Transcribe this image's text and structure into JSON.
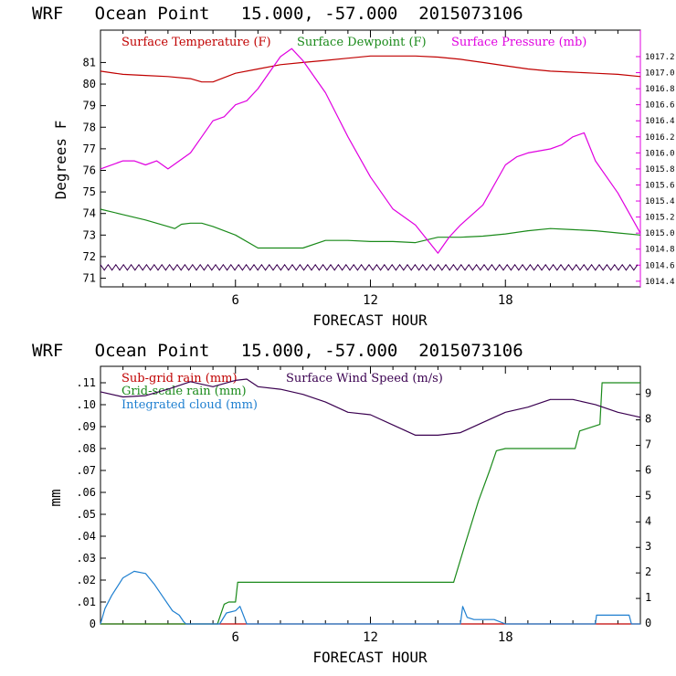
{
  "charts": [
    {
      "title": "WRF   Ocean Point   15.000, -57.000  2015073106",
      "xlabel": "FORECAST HOUR",
      "ylabel": "Degrees F",
      "x_ticks": [
        "6",
        "12",
        "18"
      ],
      "y_ticks": [
        "71",
        "72",
        "73",
        "74",
        "75",
        "76",
        "77",
        "78",
        "79",
        "80",
        "81"
      ],
      "right_ticks": [
        "1014.4",
        "1014.6",
        "1014.8",
        "1015.0",
        "1015.2",
        "1015.4",
        "1015.6",
        "1015.8",
        "1016.0",
        "1016.2",
        "1016.4",
        "1016.6",
        "1016.8",
        "1017.0",
        "1017.2"
      ],
      "legend": [
        {
          "label": "Surface Temperature (F)",
          "color": "#c00000"
        },
        {
          "label": "Surface Dewpoint (F)",
          "color": "#1a8a1a"
        },
        {
          "label": "Surface Pressure (mb)",
          "color": "#e000e0"
        }
      ]
    },
    {
      "title": "WRF   Ocean Point   15.000, -57.000  2015073106",
      "xlabel": "FORECAST HOUR",
      "ylabel": "mm",
      "x_ticks": [
        "6",
        "12",
        "18"
      ],
      "y_ticks": [
        "0",
        ".01",
        ".02",
        ".03",
        ".04",
        ".05",
        ".06",
        ".07",
        ".08",
        ".09",
        ".10",
        ".11"
      ],
      "right_ticks": [
        "0",
        "1",
        "2",
        "3",
        "4",
        "5",
        "6",
        "7",
        "8",
        "9"
      ],
      "legend": [
        {
          "label": "Sub-grid rain (mm)",
          "color": "#c00000"
        },
        {
          "label": "Grid-scale rain (mm)",
          "color": "#1a8a1a"
        },
        {
          "label": "Integrated cloud (mm)",
          "color": "#1e7fd0"
        },
        {
          "label": "Surface Wind Speed (m/s)",
          "color": "#3a0050"
        }
      ]
    }
  ],
  "chart_data": [
    {
      "type": "line",
      "title": "WRF   Ocean Point   15.000, -57.000  2015073106",
      "xlabel": "FORECAST HOUR",
      "ylabel": "Degrees F",
      "xlim": [
        0,
        24
      ],
      "ylim": [
        70.6,
        82.5
      ],
      "y2lim": [
        1014.33,
        1017.53
      ],
      "series": [
        {
          "name": "Surface Temperature (F)",
          "axis": "left",
          "color": "#c00000",
          "x": [
            0,
            1,
            2,
            3,
            4,
            4.5,
            5,
            6,
            7,
            8,
            9,
            10,
            11,
            12,
            13,
            14,
            15,
            16,
            17,
            18,
            19,
            20,
            21,
            22,
            23,
            24
          ],
          "y": [
            80.6,
            80.45,
            80.4,
            80.35,
            80.25,
            80.1,
            80.1,
            80.5,
            80.7,
            80.9,
            81.0,
            81.1,
            81.2,
            81.3,
            81.3,
            81.3,
            81.25,
            81.15,
            81.0,
            80.85,
            80.7,
            80.6,
            80.55,
            80.5,
            80.45,
            80.35
          ]
        },
        {
          "name": "Surface Dewpoint (F)",
          "axis": "left",
          "color": "#1a8a1a",
          "x": [
            0,
            1,
            2,
            3,
            3.3,
            3.6,
            4,
            4.5,
            5,
            6,
            7,
            8,
            9,
            10,
            11,
            12,
            13,
            14,
            15,
            16,
            17,
            18,
            19,
            20,
            21,
            22,
            23,
            24
          ],
          "y": [
            74.2,
            73.95,
            73.7,
            73.4,
            73.3,
            73.5,
            73.55,
            73.55,
            73.4,
            73.0,
            72.4,
            72.4,
            72.4,
            72.75,
            72.75,
            72.7,
            72.7,
            72.65,
            72.9,
            72.9,
            72.95,
            73.05,
            73.2,
            73.3,
            73.25,
            73.2,
            73.1,
            73.0
          ]
        },
        {
          "name": "Surface Pressure (mb)",
          "axis": "right",
          "color": "#e000e0",
          "x": [
            0,
            1,
            1.5,
            2,
            2.5,
            3,
            3.5,
            4,
            4.5,
            5,
            5.5,
            6,
            6.5,
            7,
            7.5,
            8,
            8.5,
            9,
            9.5,
            10,
            11,
            12,
            13,
            14,
            15,
            15.5,
            16,
            17,
            18,
            18.5,
            19,
            20,
            20.5,
            21,
            21.5,
            22,
            23,
            24
          ],
          "y": [
            1015.8,
            1015.9,
            1015.9,
            1015.85,
            1015.9,
            1015.8,
            1015.9,
            1016.0,
            1016.2,
            1016.4,
            1016.45,
            1016.6,
            1016.65,
            1016.8,
            1017.0,
            1017.2,
            1017.3,
            1017.15,
            1016.95,
            1016.75,
            1016.2,
            1015.7,
            1015.3,
            1015.1,
            1014.75,
            1014.95,
            1015.1,
            1015.35,
            1015.85,
            1015.95,
            1016.0,
            1016.05,
            1016.1,
            1016.2,
            1016.25,
            1015.9,
            1015.5,
            1015.0
          ]
        },
        {
          "name": "",
          "axis": "left",
          "color": "#3a0050",
          "style": "zigzag",
          "x": [
            0,
            24
          ],
          "y": [
            71.5,
            71.5
          ]
        }
      ]
    },
    {
      "type": "line",
      "title": "WRF   Ocean Point   15.000, -57.000  2015073106",
      "xlabel": "FORECAST HOUR",
      "ylabel": "mm",
      "xlim": [
        0,
        24
      ],
      "ylim": [
        0,
        0.1175
      ],
      "y2lim": [
        0,
        10.1
      ],
      "series": [
        {
          "name": "Sub-grid rain (mm)",
          "axis": "left",
          "color": "#c00000",
          "x": [
            0,
            24
          ],
          "y": [
            0,
            0
          ]
        },
        {
          "name": "Grid-scale rain (mm)",
          "axis": "left",
          "color": "#1a8a1a",
          "x": [
            0,
            5.2,
            5.5,
            5.7,
            6,
            6.1,
            12,
            15.7,
            16.2,
            16.8,
            17.3,
            17.6,
            18,
            21,
            21.1,
            21.3,
            22.2,
            22.3,
            24
          ],
          "y": [
            0,
            0,
            0.009,
            0.01,
            0.01,
            0.019,
            0.019,
            0.019,
            0.036,
            0.056,
            0.07,
            0.079,
            0.08,
            0.08,
            0.08,
            0.088,
            0.091,
            0.11,
            0.11
          ]
        },
        {
          "name": "Integrated cloud (mm)",
          "axis": "left",
          "color": "#1e7fd0",
          "x": [
            0,
            0.2,
            0.5,
            1,
            1.5,
            2,
            2.4,
            2.8,
            3.2,
            3.5,
            3.7,
            3.8,
            5.3,
            5.6,
            6,
            6.2,
            6.5,
            16,
            16.1,
            16.3,
            16.6,
            17.5,
            18,
            22,
            22.05,
            22.3,
            23.5,
            23.6,
            24
          ],
          "y": [
            0,
            0.007,
            0.013,
            0.021,
            0.024,
            0.023,
            0.018,
            0.012,
            0.006,
            0.004,
            0.001,
            0,
            0,
            0.005,
            0.006,
            0.008,
            0,
            0,
            0.008,
            0.003,
            0.002,
            0.002,
            0,
            0,
            0.004,
            0.004,
            0.004,
            0,
            0
          ]
        },
        {
          "name": "Surface Wind Speed (m/s)",
          "axis": "right",
          "color": "#3a0050",
          "x": [
            0,
            1,
            2,
            3,
            4,
            5,
            6,
            6.5,
            7,
            8,
            9,
            10,
            11,
            12,
            13,
            14,
            15,
            16,
            17,
            18,
            19,
            20,
            21,
            22,
            23,
            24
          ],
          "y": [
            9.1,
            8.9,
            8.95,
            9.2,
            9.5,
            9.3,
            9.55,
            9.6,
            9.3,
            9.2,
            9.0,
            8.7,
            8.3,
            8.2,
            7.8,
            7.4,
            7.4,
            7.5,
            7.9,
            8.3,
            8.5,
            8.8,
            8.8,
            8.6,
            8.3,
            8.1
          ]
        }
      ]
    }
  ]
}
